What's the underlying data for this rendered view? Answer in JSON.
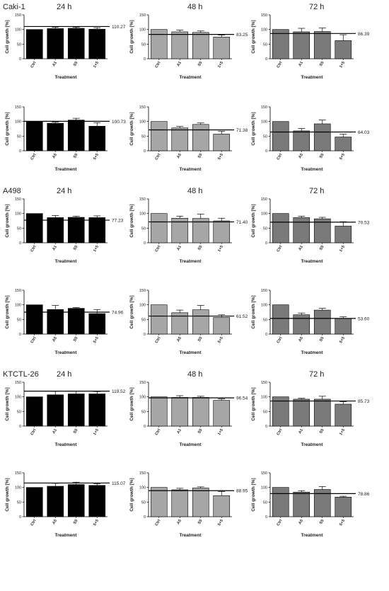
{
  "colors": {
    "24 h": "#000000",
    "48 h": "#a6a6a6",
    "72 h": "#7a7a7a"
  },
  "chart_data": [
    {
      "type": "bar",
      "cell_line": "Caki-1",
      "time": "24 h",
      "categories": [
        "Ctrl",
        "A1",
        "S5",
        "1+5"
      ],
      "values": [
        100,
        103,
        104,
        101
      ],
      "errors": [
        0,
        5,
        4,
        5
      ],
      "ref_value": 110.27,
      "ref_label": "110.27",
      "ylim": [
        0,
        150
      ],
      "yticks": [
        0,
        50,
        100,
        150
      ],
      "xlabel": "Treatment",
      "ylabel": "Cell growth [%]"
    },
    {
      "type": "bar",
      "cell_line": "",
      "time": "48 h",
      "categories": [
        "Ctrl",
        "A1",
        "S5",
        "1+5"
      ],
      "values": [
        100,
        92,
        90,
        74
      ],
      "errors": [
        0,
        6,
        5,
        7
      ],
      "ref_value": 83.25,
      "ref_label": "83.25",
      "ylim": [
        0,
        150
      ],
      "yticks": [
        0,
        50,
        100,
        150
      ],
      "xlabel": "Treatment",
      "ylabel": "Cell growth [%]"
    },
    {
      "type": "bar",
      "cell_line": "",
      "time": "72 h",
      "categories": [
        "Ctrl",
        "A1",
        "S5",
        "1+5"
      ],
      "values": [
        100,
        92,
        93,
        62
      ],
      "errors": [
        0,
        12,
        12,
        20
      ],
      "ref_value": 86.39,
      "ref_label": "86.39",
      "ylim": [
        0,
        150
      ],
      "yticks": [
        0,
        50,
        100,
        150
      ],
      "xlabel": "Treatment",
      "ylabel": "Cell growth [%]"
    },
    {
      "type": "bar",
      "cell_line": "",
      "time": "",
      "categories": [
        "Ctrl",
        "A5",
        "S5",
        "5+5"
      ],
      "values": [
        100,
        94,
        105,
        84
      ],
      "errors": [
        0,
        4,
        6,
        12
      ],
      "ref_value": 100.73,
      "ref_label": "100.73",
      "ylim": [
        0,
        150
      ],
      "yticks": [
        0,
        50,
        100,
        150
      ],
      "xlabel": "Treatment",
      "ylabel": "Cell growth [%]"
    },
    {
      "type": "bar",
      "cell_line": "",
      "time": "",
      "categories": [
        "Ctrl",
        "A5",
        "S5",
        "5+5"
      ],
      "values": [
        100,
        78,
        90,
        57
      ],
      "errors": [
        0,
        5,
        5,
        10
      ],
      "ref_value": 71.38,
      "ref_label": "71.38",
      "ylim": [
        0,
        150
      ],
      "yticks": [
        0,
        50,
        100,
        150
      ],
      "xlabel": "Treatment",
      "ylabel": "Cell growth [%]"
    },
    {
      "type": "bar",
      "cell_line": "",
      "time": "",
      "categories": [
        "Ctrl",
        "A5",
        "S5",
        "5+5"
      ],
      "values": [
        100,
        68,
        92,
        47
      ],
      "errors": [
        0,
        8,
        13,
        10
      ],
      "ref_value": 64.03,
      "ref_label": "64.03",
      "ylim": [
        0,
        150
      ],
      "yticks": [
        0,
        50,
        100,
        150
      ],
      "xlabel": "Treatment",
      "ylabel": "Cell growth [%]"
    },
    {
      "type": "bar",
      "cell_line": "A498",
      "time": "24 h",
      "categories": [
        "Ctrl",
        "A1",
        "S5",
        "1+5"
      ],
      "values": [
        100,
        86,
        87,
        86
      ],
      "errors": [
        0,
        7,
        4,
        6
      ],
      "ref_value": 77.23,
      "ref_label": "77.23",
      "ylim": [
        0,
        150
      ],
      "yticks": [
        0,
        50,
        100,
        150
      ],
      "xlabel": "Treatment",
      "ylabel": "Cell growth [%]"
    },
    {
      "type": "bar",
      "cell_line": "",
      "time": "48 h",
      "categories": [
        "Ctrl",
        "A1",
        "S5",
        "1+5"
      ],
      "values": [
        100,
        84,
        83,
        75
      ],
      "errors": [
        0,
        7,
        15,
        9
      ],
      "ref_value": 71.4,
      "ref_label": "71.40",
      "ylim": [
        0,
        150
      ],
      "yticks": [
        0,
        50,
        100,
        150
      ],
      "xlabel": "Treatment",
      "ylabel": "Cell growth [%]"
    },
    {
      "type": "bar",
      "cell_line": "",
      "time": "72 h",
      "categories": [
        "Ctrl",
        "A1",
        "S5",
        "1+5"
      ],
      "values": [
        100,
        86,
        82,
        57
      ],
      "errors": [
        0,
        5,
        5,
        15
      ],
      "ref_value": 70.53,
      "ref_label": "70.53",
      "ylim": [
        0,
        150
      ],
      "yticks": [
        0,
        50,
        100,
        150
      ],
      "xlabel": "Treatment",
      "ylabel": "Cell growth [%]"
    },
    {
      "type": "bar",
      "cell_line": "",
      "time": "",
      "categories": [
        "Ctrl",
        "A5",
        "S5",
        "5+5"
      ],
      "values": [
        100,
        84,
        88,
        70
      ],
      "errors": [
        0,
        14,
        3,
        14
      ],
      "ref_value": 74.96,
      "ref_label": "74.96",
      "ylim": [
        0,
        150
      ],
      "yticks": [
        0,
        50,
        100,
        150
      ],
      "xlabel": "Treatment",
      "ylabel": "Cell growth [%]"
    },
    {
      "type": "bar",
      "cell_line": "",
      "time": "",
      "categories": [
        "Ctrl",
        "A5",
        "S5",
        "5+5"
      ],
      "values": [
        100,
        73,
        83,
        57
      ],
      "errors": [
        0,
        9,
        15,
        9
      ],
      "ref_value": 61.52,
      "ref_label": "61.52",
      "ylim": [
        0,
        150
      ],
      "yticks": [
        0,
        50,
        100,
        150
      ],
      "xlabel": "Treatment",
      "ylabel": "Cell growth [%]"
    },
    {
      "type": "bar",
      "cell_line": "",
      "time": "",
      "categories": [
        "Ctrl",
        "A5",
        "S5",
        "5+5"
      ],
      "values": [
        100,
        66,
        82,
        53
      ],
      "errors": [
        0,
        6,
        6,
        6
      ],
      "ref_value": 53.6,
      "ref_label": "53.60",
      "ylim": [
        0,
        150
      ],
      "yticks": [
        0,
        50,
        100,
        150
      ],
      "xlabel": "Treatment",
      "ylabel": "Cell growth [%]"
    },
    {
      "type": "bar",
      "cell_line": "KTCTL-26",
      "time": "24 h",
      "categories": [
        "Ctrl",
        "A1",
        "S5",
        "1+5"
      ],
      "values": [
        100,
        107,
        110,
        110
      ],
      "errors": [
        0,
        12,
        10,
        8
      ],
      "ref_value": 119.52,
      "ref_label": "119.52",
      "ylim": [
        0,
        150
      ],
      "yticks": [
        0,
        50,
        100,
        150
      ],
      "xlabel": "Treatment",
      "ylabel": "Cell growth [%]"
    },
    {
      "type": "bar",
      "cell_line": "",
      "time": "48 h",
      "categories": [
        "Ctrl",
        "A1",
        "S5",
        "1+5"
      ],
      "values": [
        100,
        98,
        98,
        88
      ],
      "errors": [
        0,
        6,
        4,
        5
      ],
      "ref_value": 96.54,
      "ref_label": "96.54",
      "ylim": [
        0,
        150
      ],
      "yticks": [
        0,
        50,
        100,
        150
      ],
      "xlabel": "Treatment",
      "ylabel": "Cell growth [%]"
    },
    {
      "type": "bar",
      "cell_line": "",
      "time": "72 h",
      "categories": [
        "Ctrl",
        "A1",
        "S5",
        "1+5"
      ],
      "values": [
        100,
        92,
        92,
        75
      ],
      "errors": [
        0,
        3,
        10,
        8
      ],
      "ref_value": 85.73,
      "ref_label": "85.73",
      "ylim": [
        0,
        150
      ],
      "yticks": [
        0,
        50,
        100,
        150
      ],
      "xlabel": "Treatment",
      "ylabel": "Cell growth [%]"
    },
    {
      "type": "bar",
      "cell_line": "",
      "time": "",
      "categories": [
        "Ctrl",
        "A5",
        "S5",
        "5+5"
      ],
      "values": [
        100,
        104,
        110,
        107
      ],
      "errors": [
        0,
        10,
        8,
        6
      ],
      "ref_value": 115.07,
      "ref_label": "115.07",
      "ylim": [
        0,
        150
      ],
      "yticks": [
        0,
        50,
        100,
        150
      ],
      "xlabel": "Treatment",
      "ylabel": "Cell growth [%]"
    },
    {
      "type": "bar",
      "cell_line": "",
      "time": "",
      "categories": [
        "Ctrl",
        "A5",
        "S5",
        "5+5"
      ],
      "values": [
        100,
        92,
        98,
        72
      ],
      "errors": [
        0,
        5,
        4,
        14
      ],
      "ref_value": 88.95,
      "ref_label": "88.95",
      "ylim": [
        0,
        150
      ],
      "yticks": [
        0,
        50,
        100,
        150
      ],
      "xlabel": "Treatment",
      "ylabel": "Cell growth [%]"
    },
    {
      "type": "bar",
      "cell_line": "",
      "time": "",
      "categories": [
        "Ctrl",
        "A5",
        "S5",
        "5+5"
      ],
      "values": [
        100,
        84,
        93,
        67
      ],
      "errors": [
        0,
        5,
        10,
        3
      ],
      "ref_value": 78.86,
      "ref_label": "78.86",
      "ylim": [
        0,
        150
      ],
      "yticks": [
        0,
        50,
        100,
        150
      ],
      "xlabel": "Treatment",
      "ylabel": "Cell growth [%]"
    }
  ]
}
